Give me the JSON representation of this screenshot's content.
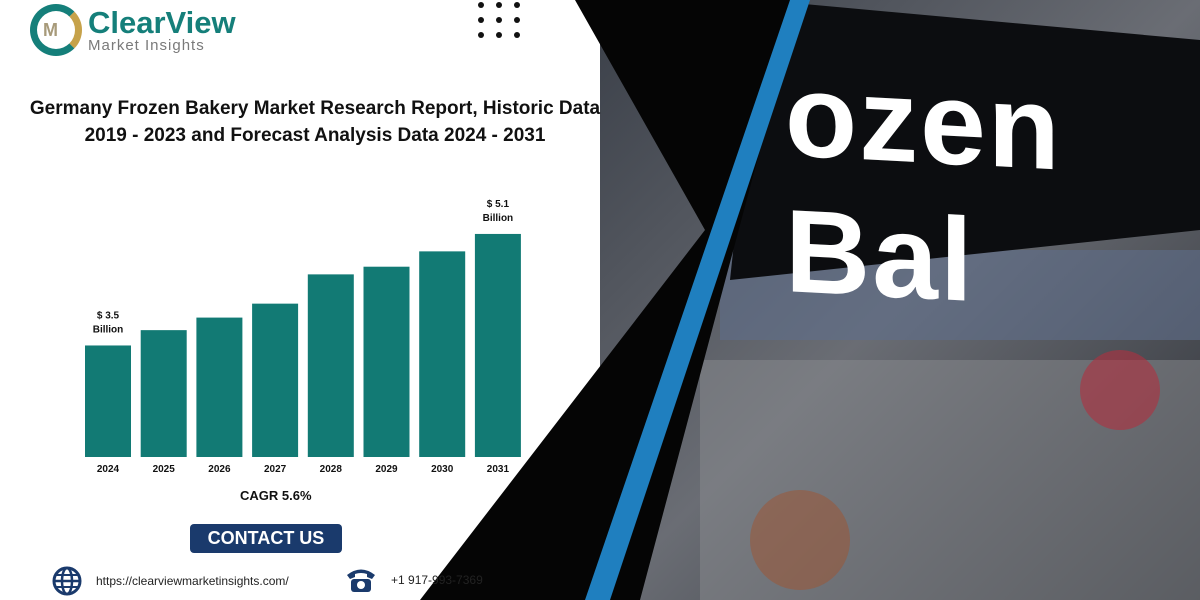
{
  "brand": {
    "name": "ClearView",
    "tagline": "Market Insights",
    "logo_mark": "M"
  },
  "title_line1": "Germany Frozen Bakery Market Research Report, Historic Data",
  "title_line2": "2019 - 2023 and Forecast Analysis Data 2024 - 2031",
  "cagr": "CAGR 5.6%",
  "contact_label": "CONTACT US",
  "website": "https://clearviewmarketinsights.com/",
  "phone": "+1 917-993-7369",
  "photo_sign_text": "ozen Bal",
  "colors": {
    "bar": "#127a74",
    "brand_teal": "#157f7a",
    "button": "#1a3a6c",
    "stripe": "#1f7fbf"
  },
  "chart_data": {
    "type": "bar",
    "categories": [
      "2024",
      "2025",
      "2026",
      "2027",
      "2028",
      "2029",
      "2030",
      "2031"
    ],
    "values": [
      3.5,
      3.72,
      3.9,
      4.1,
      4.52,
      4.63,
      4.85,
      5.1
    ],
    "data_labels": {
      "0": [
        "$ 3.5",
        "Billion"
      ],
      "7": [
        "$ 5.1",
        "Billion"
      ]
    },
    "ylim": [
      1.9,
      5.3
    ],
    "grid": false,
    "unit": "Billion"
  }
}
